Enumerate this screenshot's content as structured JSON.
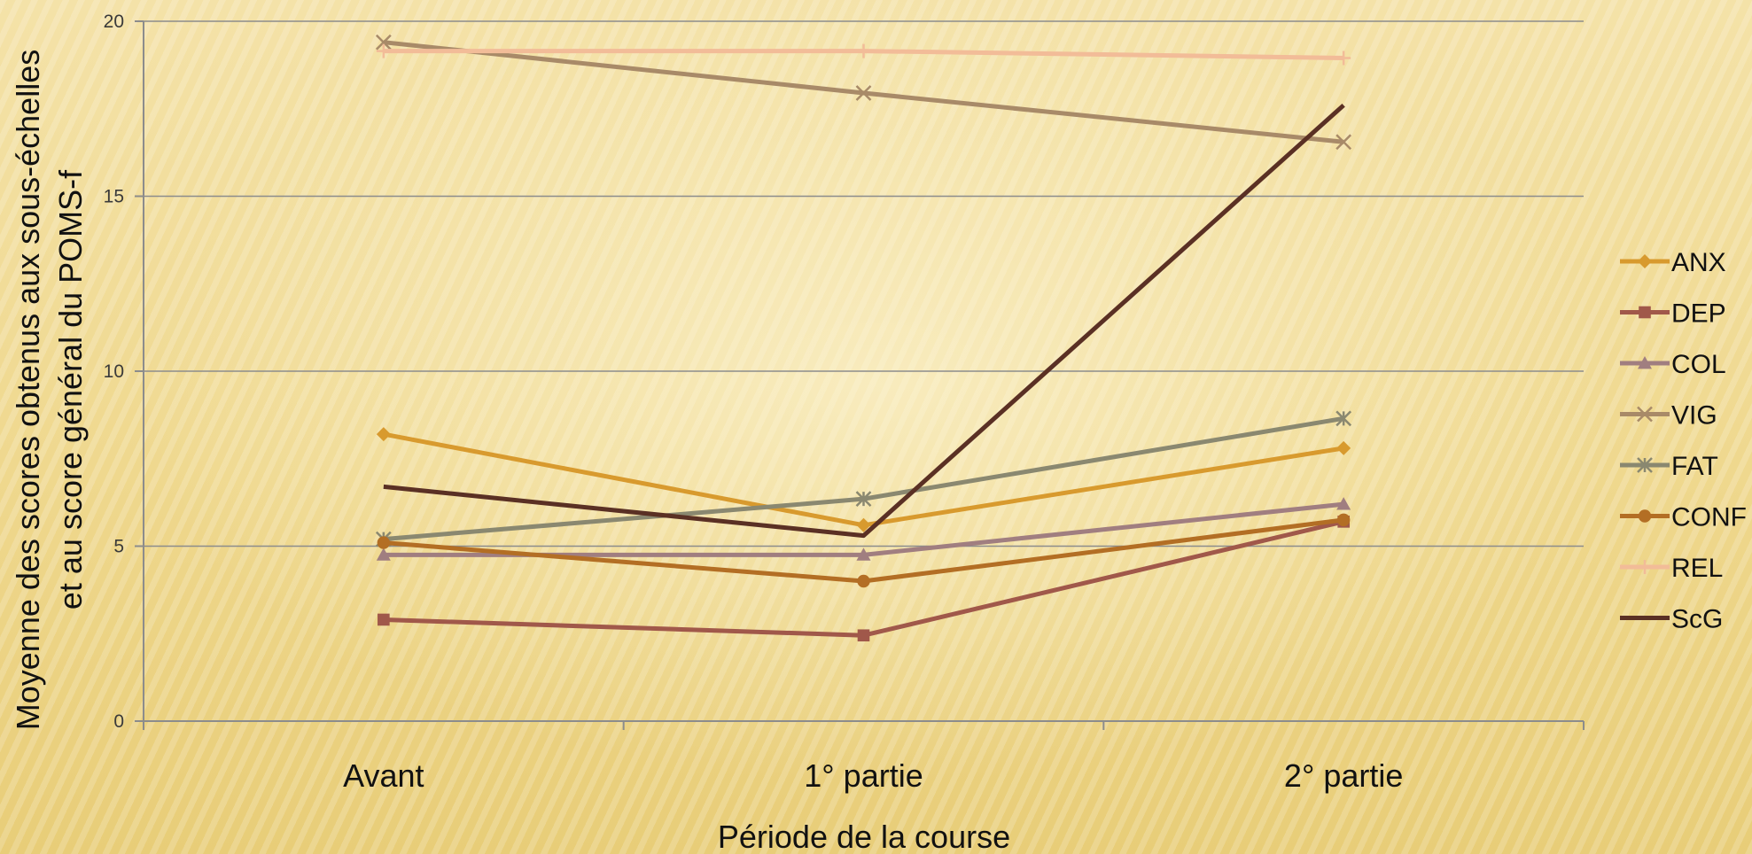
{
  "chart_data": {
    "type": "line",
    "title": "",
    "xlabel": "Période de la course",
    "ylabel_lines": [
      "Moyenne des scores obtenus aux sous-échelles",
      "et au score général du POMS-f"
    ],
    "categories": [
      "Avant",
      "1° partie",
      "2° partie"
    ],
    "ylim": [
      0,
      20
    ],
    "yticks": [
      "0",
      "5",
      "10",
      "15",
      "20"
    ],
    "grid": true,
    "legend_position": "right",
    "series": [
      {
        "name": "ANX",
        "values": [
          8.2,
          5.6,
          7.8
        ],
        "color": "#d89a2e",
        "marker": "diamond"
      },
      {
        "name": "DEP",
        "values": [
          2.9,
          2.45,
          5.7
        ],
        "color": "#a0584a",
        "marker": "square"
      },
      {
        "name": "COL",
        "values": [
          4.75,
          4.75,
          6.2
        ],
        "color": "#a07e80",
        "marker": "triangle"
      },
      {
        "name": "VIG",
        "values": [
          19.4,
          17.95,
          16.55
        ],
        "color": "#a88a68",
        "marker": "x"
      },
      {
        "name": "FAT",
        "values": [
          5.2,
          6.35,
          8.65
        ],
        "color": "#8a8870",
        "marker": "star"
      },
      {
        "name": "CONF",
        "values": [
          5.1,
          4.0,
          5.75
        ],
        "color": "#b36e24",
        "marker": "circle"
      },
      {
        "name": "REL",
        "values": [
          19.15,
          19.15,
          18.95
        ],
        "color": "#f2bc98",
        "marker": "plus"
      },
      {
        "name": "ScG",
        "values": [
          6.7,
          5.3,
          17.6
        ],
        "color": "#5a3024",
        "marker": "none"
      }
    ]
  }
}
